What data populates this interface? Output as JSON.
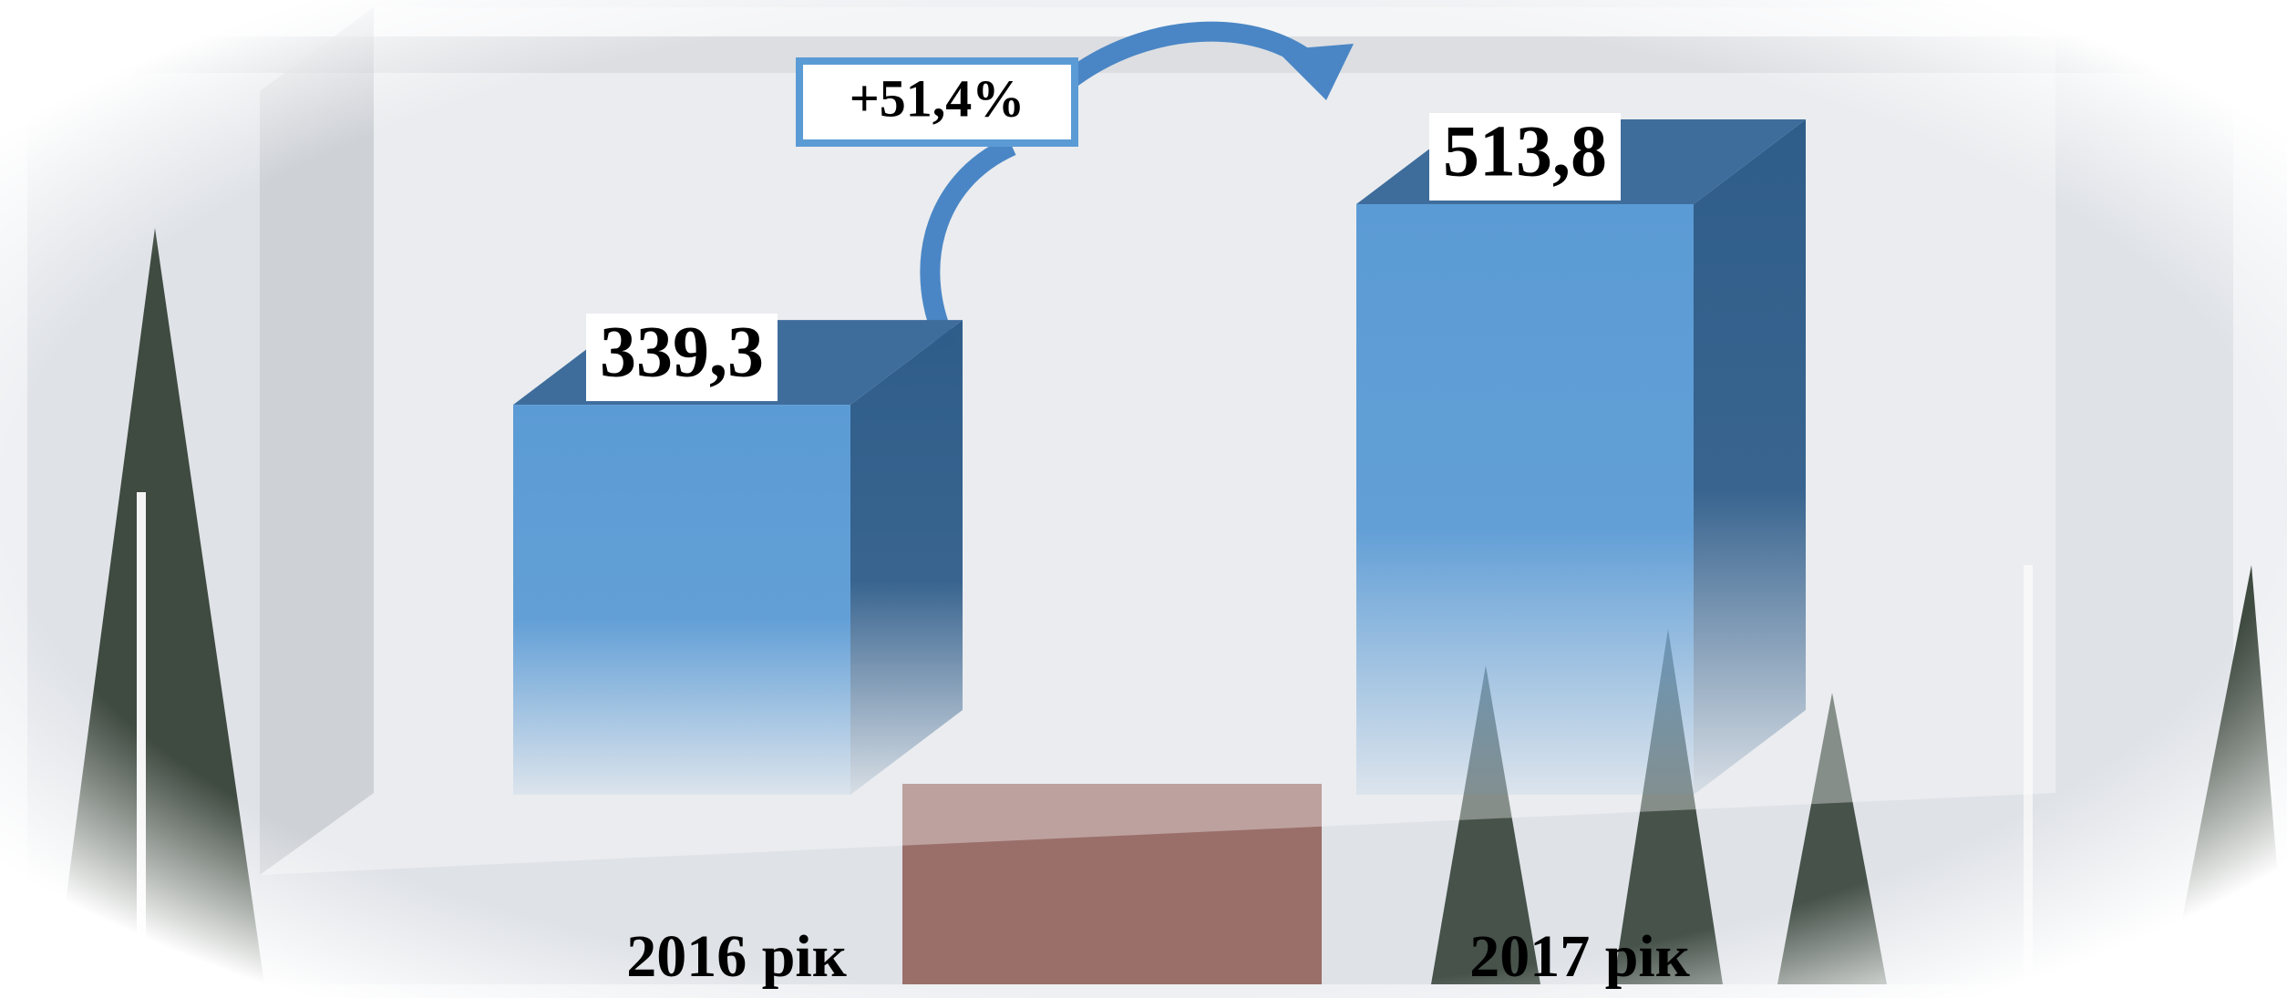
{
  "chart_data": {
    "type": "bar3d",
    "categories": [
      "2016 рік",
      "2017 рік"
    ],
    "values": [
      339.3,
      513.8
    ],
    "value_labels": [
      "339,3",
      "513,8"
    ],
    "color": "#5b9bd5",
    "annotation": "+51,4%"
  }
}
